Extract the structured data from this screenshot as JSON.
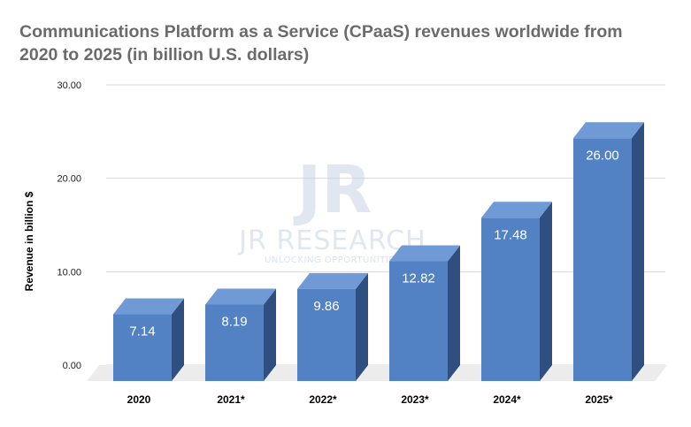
{
  "chart_data": {
    "type": "bar",
    "title_line1": "Communications Platform as a Service (CPaaS) revenues worldwide from",
    "title_line2": "2020 to 2025 (in billion U.S. dollars)",
    "xlabel": "",
    "ylabel": "Revenue in billion $",
    "categories": [
      "2020",
      "2021*",
      "2022*",
      "2023*",
      "2024*",
      "2025*"
    ],
    "values": [
      7.14,
      8.19,
      9.86,
      12.82,
      17.48,
      26.0
    ],
    "value_labels": [
      "7.14",
      "8.19",
      "9.86",
      "12.82",
      "17.48",
      "26.00"
    ],
    "yticks": [
      "0.00",
      "10.00",
      "20.00",
      "30.00"
    ],
    "ylim": [
      0,
      30
    ],
    "grid": true,
    "legend": "none",
    "style": "3d-bar",
    "colors": {
      "bar_front": "#5282c4",
      "bar_side": "#2e4f7f",
      "bar_top": "#6f9ad6",
      "floor": "#ececec",
      "title": "#6b6b6b"
    }
  },
  "watermark": {
    "logo_letters": "JR",
    "name": "JR RESEARCH",
    "tagline": "UNLOCKING OPPORTUNITIES"
  }
}
